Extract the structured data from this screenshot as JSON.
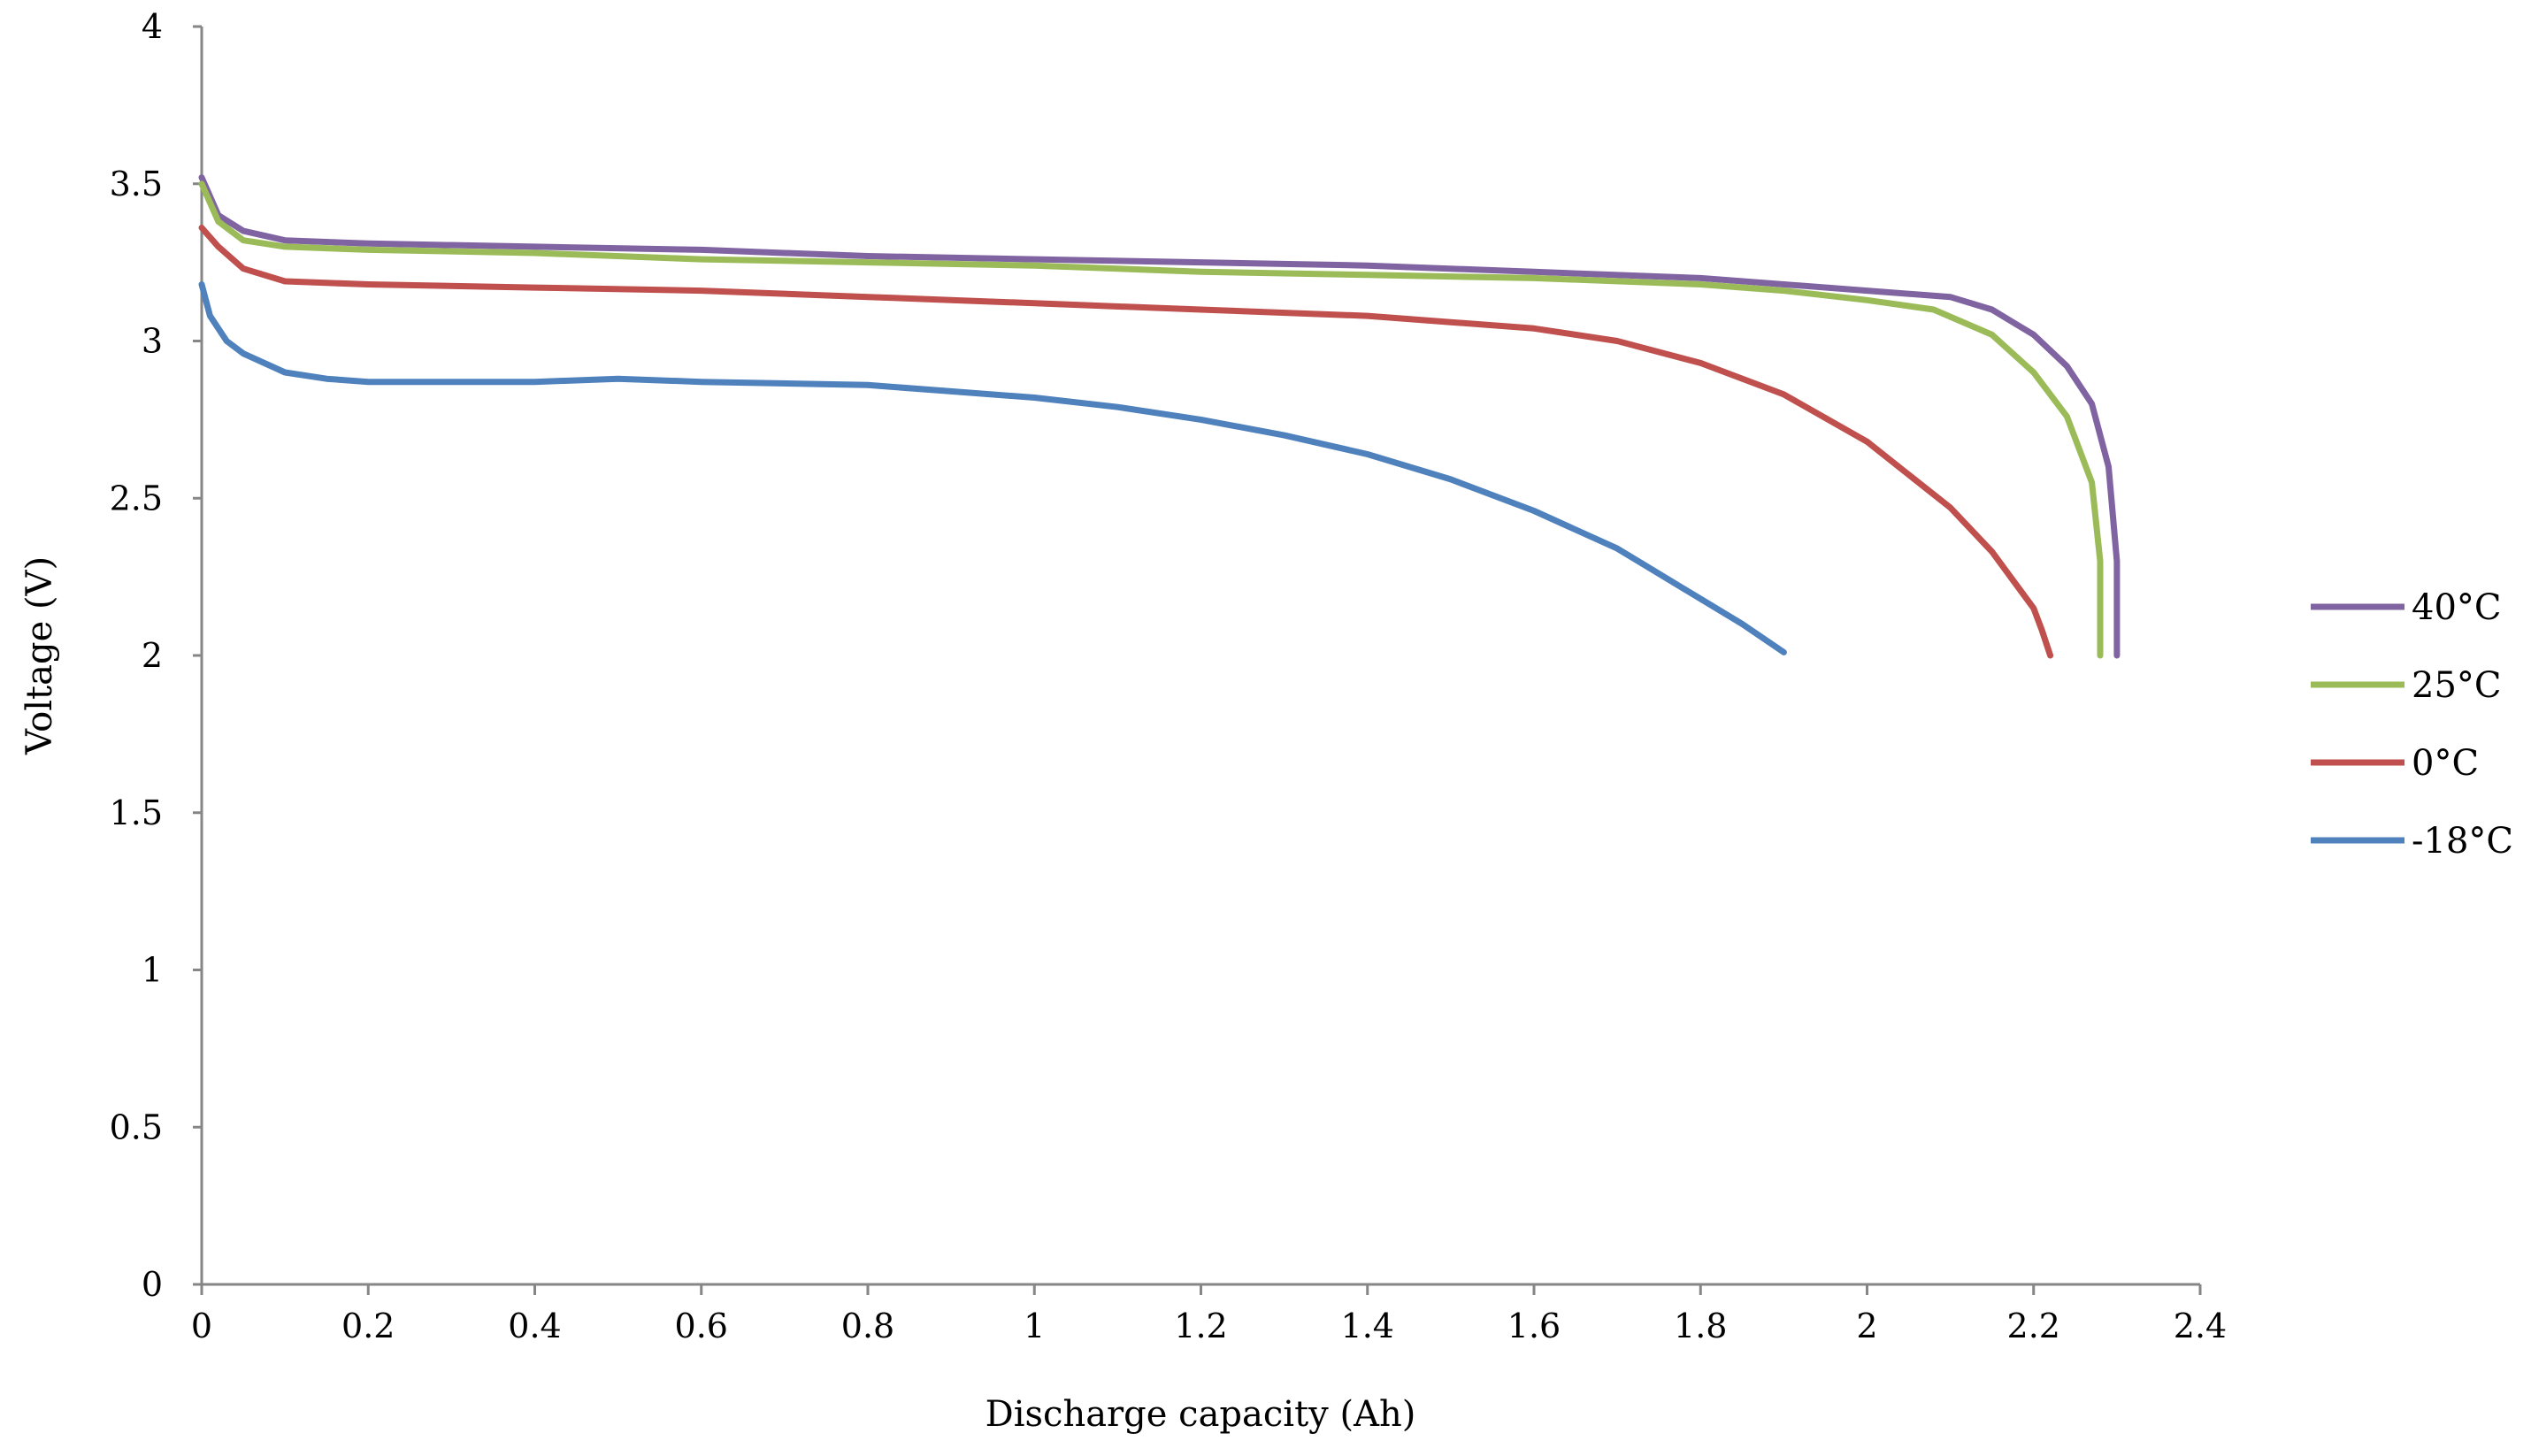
{
  "chart_data": {
    "type": "line",
    "title": "",
    "xlabel": "Discharge capacity (Ah)",
    "ylabel": "Voltage (V)",
    "xlim": [
      0,
      2.4
    ],
    "ylim": [
      0,
      4
    ],
    "x_ticks": [
      "0",
      "0.2",
      "0.4",
      "0.6",
      "0.8",
      "1",
      "1.2",
      "1.4",
      "1.6",
      "1.8",
      "2",
      "2.2",
      "2.4"
    ],
    "y_ticks": [
      "0",
      "0.5",
      "1",
      "1.5",
      "2",
      "2.5",
      "3",
      "3.5",
      "4"
    ],
    "grid": false,
    "legend_position": "right",
    "series": [
      {
        "name": "40°C",
        "color": "#8064A2",
        "points": [
          [
            0,
            3.52
          ],
          [
            0.02,
            3.4
          ],
          [
            0.05,
            3.35
          ],
          [
            0.1,
            3.32
          ],
          [
            0.2,
            3.31
          ],
          [
            0.4,
            3.3
          ],
          [
            0.6,
            3.29
          ],
          [
            0.8,
            3.27
          ],
          [
            1.0,
            3.26
          ],
          [
            1.2,
            3.25
          ],
          [
            1.4,
            3.24
          ],
          [
            1.6,
            3.22
          ],
          [
            1.8,
            3.2
          ],
          [
            1.9,
            3.18
          ],
          [
            2.0,
            3.16
          ],
          [
            2.1,
            3.14
          ],
          [
            2.15,
            3.1
          ],
          [
            2.2,
            3.02
          ],
          [
            2.24,
            2.92
          ],
          [
            2.27,
            2.8
          ],
          [
            2.29,
            2.6
          ],
          [
            2.3,
            2.3
          ],
          [
            2.3,
            2.0
          ]
        ]
      },
      {
        "name": "25°C",
        "color": "#9BBB59",
        "points": [
          [
            0,
            3.5
          ],
          [
            0.02,
            3.38
          ],
          [
            0.05,
            3.32
          ],
          [
            0.1,
            3.3
          ],
          [
            0.2,
            3.29
          ],
          [
            0.4,
            3.28
          ],
          [
            0.6,
            3.26
          ],
          [
            0.8,
            3.25
          ],
          [
            1.0,
            3.24
          ],
          [
            1.2,
            3.22
          ],
          [
            1.4,
            3.21
          ],
          [
            1.6,
            3.2
          ],
          [
            1.8,
            3.18
          ],
          [
            1.9,
            3.16
          ],
          [
            2.0,
            3.13
          ],
          [
            2.08,
            3.1
          ],
          [
            2.15,
            3.02
          ],
          [
            2.2,
            2.9
          ],
          [
            2.24,
            2.76
          ],
          [
            2.27,
            2.55
          ],
          [
            2.28,
            2.3
          ],
          [
            2.28,
            2.0
          ]
        ]
      },
      {
        "name": "0°C",
        "color": "#C0504D",
        "points": [
          [
            0,
            3.36
          ],
          [
            0.02,
            3.3
          ],
          [
            0.05,
            3.23
          ],
          [
            0.1,
            3.19
          ],
          [
            0.2,
            3.18
          ],
          [
            0.4,
            3.17
          ],
          [
            0.6,
            3.16
          ],
          [
            0.8,
            3.14
          ],
          [
            1.0,
            3.12
          ],
          [
            1.2,
            3.1
          ],
          [
            1.4,
            3.08
          ],
          [
            1.5,
            3.06
          ],
          [
            1.6,
            3.04
          ],
          [
            1.7,
            3.0
          ],
          [
            1.8,
            2.93
          ],
          [
            1.9,
            2.83
          ],
          [
            2.0,
            2.68
          ],
          [
            2.1,
            2.47
          ],
          [
            2.15,
            2.33
          ],
          [
            2.2,
            2.15
          ],
          [
            2.21,
            2.08
          ],
          [
            2.22,
            2.0
          ]
        ]
      },
      {
        "name": "-18°C",
        "color": "#4F81BD",
        "points": [
          [
            0,
            3.18
          ],
          [
            0.01,
            3.08
          ],
          [
            0.03,
            3.0
          ],
          [
            0.05,
            2.96
          ],
          [
            0.1,
            2.9
          ],
          [
            0.15,
            2.88
          ],
          [
            0.2,
            2.87
          ],
          [
            0.4,
            2.87
          ],
          [
            0.5,
            2.88
          ],
          [
            0.6,
            2.87
          ],
          [
            0.8,
            2.86
          ],
          [
            0.9,
            2.84
          ],
          [
            1.0,
            2.82
          ],
          [
            1.1,
            2.79
          ],
          [
            1.2,
            2.75
          ],
          [
            1.3,
            2.7
          ],
          [
            1.4,
            2.64
          ],
          [
            1.5,
            2.56
          ],
          [
            1.6,
            2.46
          ],
          [
            1.7,
            2.34
          ],
          [
            1.8,
            2.18
          ],
          [
            1.85,
            2.1
          ],
          [
            1.9,
            2.01
          ]
        ]
      }
    ]
  }
}
